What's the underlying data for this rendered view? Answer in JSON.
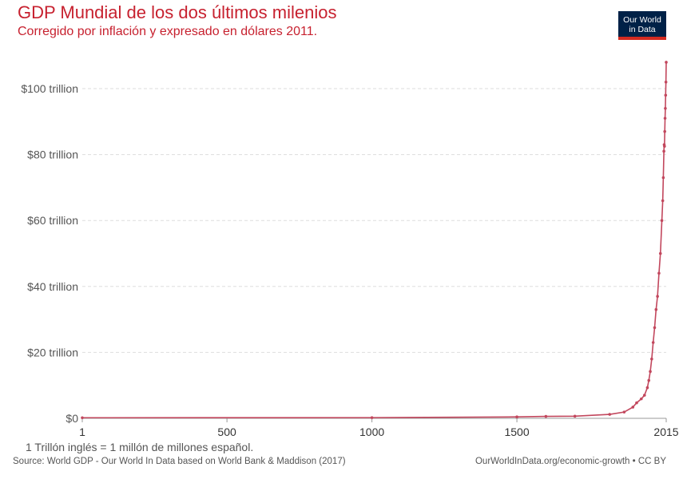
{
  "header": {
    "title": "GDP Mundial de los dos últimos milenios",
    "subtitle": "Corregido por inflación y expresado en dólares 2011."
  },
  "logo": {
    "line1": "Our World",
    "line2": "in Data"
  },
  "footer": {
    "note": "1 Trillón inglés = 1 millón de millones español.",
    "source": "Source: World GDP - Our World In Data based on World Bank & Maddison (2017)",
    "credit": "OurWorldInData.org/economic-growth • CC BY"
  },
  "colors": {
    "line": "#c2475d",
    "title": "#c7212f",
    "logo_bg": "#002147",
    "logo_accent": "#d42b21",
    "grid": "#dddddd"
  },
  "chart_data": {
    "type": "line",
    "title": "GDP Mundial de los dos últimos milenios",
    "subtitle": "Corregido por inflación y expresado en dólares 2011.",
    "xlabel": "",
    "ylabel": "",
    "xlim": [
      1,
      2015
    ],
    "ylim": [
      0,
      100
    ],
    "y_unit": "trillion (2011 USD)",
    "grid": "horizontal dashed",
    "legend": "none",
    "x_tick_labels": [
      "1",
      "500",
      "1000",
      "1500",
      "2015"
    ],
    "x_tick_values": [
      1,
      500,
      1000,
      1500,
      2015
    ],
    "y_tick_labels": [
      "$0",
      "$20 trillion",
      "$40 trillion",
      "$60 trillion",
      "$80 trillion",
      "$100 trillion"
    ],
    "y_tick_values": [
      0,
      20,
      40,
      60,
      80,
      100
    ],
    "series": [
      {
        "points": [
          [
            1,
            0.18
          ],
          [
            1000,
            0.21
          ],
          [
            1500,
            0.43
          ],
          [
            1600,
            0.59
          ],
          [
            1700,
            0.64
          ],
          [
            1820,
            1.2
          ],
          [
            1870,
            1.9
          ],
          [
            1900,
            3.4
          ],
          [
            1913,
            4.7
          ],
          [
            1929,
            5.9
          ],
          [
            1940,
            7.0
          ],
          [
            1950,
            9.3
          ],
          [
            1955,
            11.5
          ],
          [
            1960,
            14.2
          ],
          [
            1965,
            18.0
          ],
          [
            1970,
            23.0
          ],
          [
            1975,
            27.5
          ],
          [
            1980,
            33.0
          ],
          [
            1985,
            37.0
          ],
          [
            1990,
            44.0
          ],
          [
            1995,
            50.0
          ],
          [
            2000,
            60.0
          ],
          [
            2003,
            66.0
          ],
          [
            2005,
            73.0
          ],
          [
            2007,
            81.0
          ],
          [
            2008,
            83.0
          ],
          [
            2009,
            82.5
          ],
          [
            2010,
            87.0
          ],
          [
            2011,
            91.0
          ],
          [
            2012,
            94.0
          ],
          [
            2013,
            98.0
          ],
          [
            2014,
            102.0
          ],
          [
            2015,
            108.0
          ]
        ]
      }
    ]
  }
}
